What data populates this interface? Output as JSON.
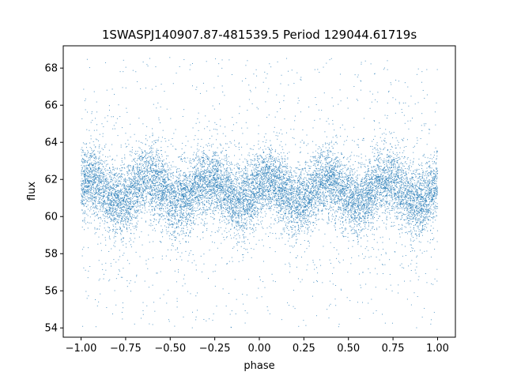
{
  "chart_data": {
    "type": "scatter",
    "title": "1SWASPJ140907.87-481539.5 Period 129044.61719s",
    "xlabel": "phase",
    "ylabel": "flux",
    "xlim": [
      -1.1,
      1.1
    ],
    "ylim": [
      53.5,
      69.2
    ],
    "xticks": [
      -1.0,
      -0.75,
      -0.5,
      -0.25,
      0.0,
      0.25,
      0.5,
      0.75,
      1.0
    ],
    "xtick_labels": [
      "−1.00",
      "−0.75",
      "−0.50",
      "−0.25",
      "0.00",
      "0.25",
      "0.50",
      "0.75",
      "1.00"
    ],
    "yticks": [
      54,
      56,
      58,
      60,
      62,
      64,
      66,
      68
    ],
    "ytick_labels": [
      "54",
      "56",
      "58",
      "60",
      "62",
      "64",
      "66",
      "68"
    ],
    "grid": false,
    "legend": "none",
    "point_color": "#1f77b4",
    "x_range": [
      -1.0,
      1.0
    ],
    "wave": {
      "cycles_per_unit_phase": 3,
      "mean_flux": 61.4,
      "amplitude": 0.6,
      "peak_phases": [
        -0.95,
        -0.62,
        -0.28,
        0.05,
        0.38,
        0.72
      ],
      "core_spread": 0.9,
      "outlier_range": [
        54.0,
        68.6
      ]
    },
    "n_points": 14000
  }
}
